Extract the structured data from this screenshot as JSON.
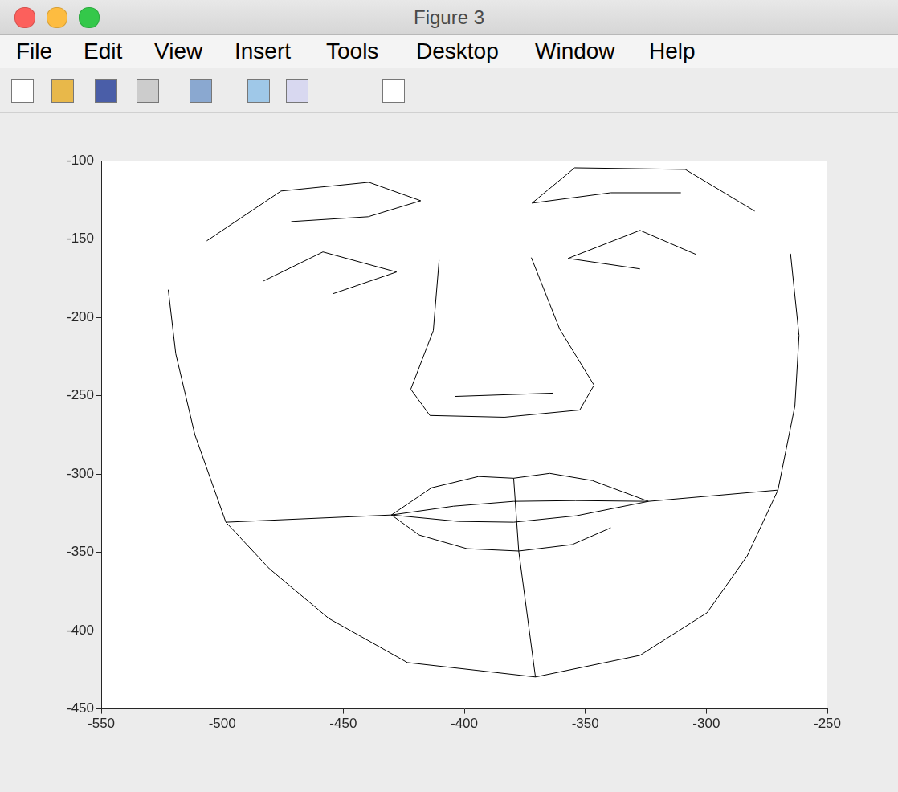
{
  "window": {
    "title": "Figure 3",
    "menu": [
      "File",
      "Edit",
      "View",
      "Insert",
      "Tools",
      "Desktop",
      "Window",
      "Help"
    ]
  },
  "chart_data": {
    "type": "line",
    "color": "#000000",
    "grid": false,
    "xlim": [
      -550,
      -250
    ],
    "xticks": [
      -550,
      -500,
      -450,
      -400,
      -350,
      -300,
      -250
    ],
    "ylim": [
      -450,
      -100
    ],
    "yticks": [
      -450,
      -400,
      -350,
      -300,
      -250,
      -200,
      -150,
      -100
    ],
    "series": [
      {
        "x": [
          -506.4,
          -475.7,
          -439.4,
          -418.0,
          -439.7,
          -471.5
        ],
        "values": [
          -151.2,
          -119.4,
          -113.8,
          -125.6,
          -135.8,
          -138.9
        ]
      },
      {
        "x": [
          -280.0,
          -308.7,
          -354.4,
          -372.0,
          -339.5,
          -310.5
        ],
        "values": [
          -132.2,
          -105.6,
          -104.6,
          -127.1,
          -120.5,
          -120.5
        ]
      },
      {
        "x": [
          -482.9,
          -458.4,
          -428.0,
          -454.3
        ],
        "values": [
          -176.8,
          -158.3,
          -171.1,
          -185.0
        ]
      },
      {
        "x": [
          -304.2,
          -327.4,
          -357.1,
          -327.4
        ],
        "values": [
          -159.9,
          -144.5,
          -162.4,
          -169.1
        ]
      },
      {
        "x": [
          -522.3,
          -519.2,
          -511.3,
          -498.5,
          -480.5,
          -456.0,
          -423.5,
          -370.6,
          -327.4,
          -299.7,
          -283.1,
          -270.4,
          -263.4,
          -261.7,
          -265.2
        ],
        "values": [
          -182.4,
          -223.3,
          -275.0,
          -330.8,
          -360.5,
          -392.2,
          -420.4,
          -429.6,
          -415.8,
          -388.6,
          -352.3,
          -310.3,
          -256.6,
          -211.6,
          -159.4
        ]
      },
      {
        "x": [
          -410.4,
          -412.8,
          -422.1,
          -414.2,
          -383.4,
          -352.3,
          -346.4,
          -360.6,
          -372.3
        ],
        "values": [
          -163.5,
          -208.5,
          -245.9,
          -262.7,
          -263.8,
          -259.2,
          -243.3,
          -207.5,
          -161.9
        ]
      },
      {
        "x": [
          -403.8,
          -363.3
        ],
        "values": [
          -250.5,
          -248.4
        ]
      },
      {
        "x": [
          -498.5,
          -430.1
        ],
        "values": [
          -330.8,
          -326.2
        ]
      },
      {
        "x": [
          -323.9,
          -270.4
        ],
        "values": [
          -317.5,
          -310.3
        ]
      },
      {
        "x": [
          -430.1,
          -413.5,
          -394.1,
          -379.6,
          -364.7,
          -347.1,
          -323.9
        ],
        "values": [
          -326.2,
          -308.8,
          -301.6,
          -302.7,
          -299.6,
          -304.2,
          -317.5
        ]
      },
      {
        "x": [
          -430.1,
          -404.5,
          -379.6,
          -354.0,
          -323.9
        ],
        "values": [
          -326.2,
          -320.6,
          -317.5,
          -317.0,
          -317.5
        ]
      },
      {
        "x": [
          -430.1,
          -402.4,
          -379.6,
          -353.7,
          -323.9
        ],
        "values": [
          -326.2,
          -330.3,
          -330.8,
          -326.7,
          -317.5
        ]
      },
      {
        "x": [
          -430.1,
          -418.6,
          -398.9,
          -377.5,
          -355.4,
          -339.5
        ],
        "values": [
          -326.2,
          -339.0,
          -347.7,
          -349.2,
          -345.1,
          -334.4
        ]
      },
      {
        "x": [
          -379.6,
          -377.5,
          -370.6
        ],
        "values": [
          -302.7,
          -349.2,
          -429.6
        ]
      }
    ]
  }
}
